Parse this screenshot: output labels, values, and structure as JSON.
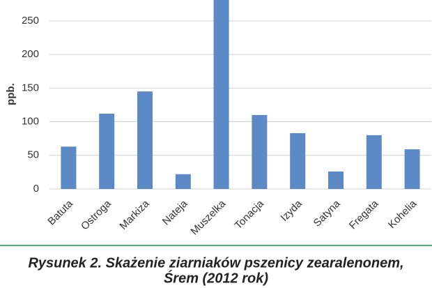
{
  "chart_data": {
    "type": "bar",
    "y_label": "ppb.",
    "categories": [
      "Batuta",
      "Ostroga",
      "Markiza",
      "Nateja",
      "Muszelka",
      "Tonacja",
      "Izyda",
      "Satyna",
      "Fregata",
      "Kohelia"
    ],
    "values": [
      63,
      112,
      145,
      22,
      285,
      110,
      83,
      26,
      80,
      59
    ],
    "color": "#5b8ac6",
    "ylim": [
      0,
      281
    ],
    "yticks": [
      0,
      50,
      100,
      150,
      200,
      250
    ],
    "grid": true
  },
  "caption": [
    "Rysunek 2. Skażenie ziarniaków pszenicy zearalenonem,",
    "Śrem (2012 rok)"
  ]
}
